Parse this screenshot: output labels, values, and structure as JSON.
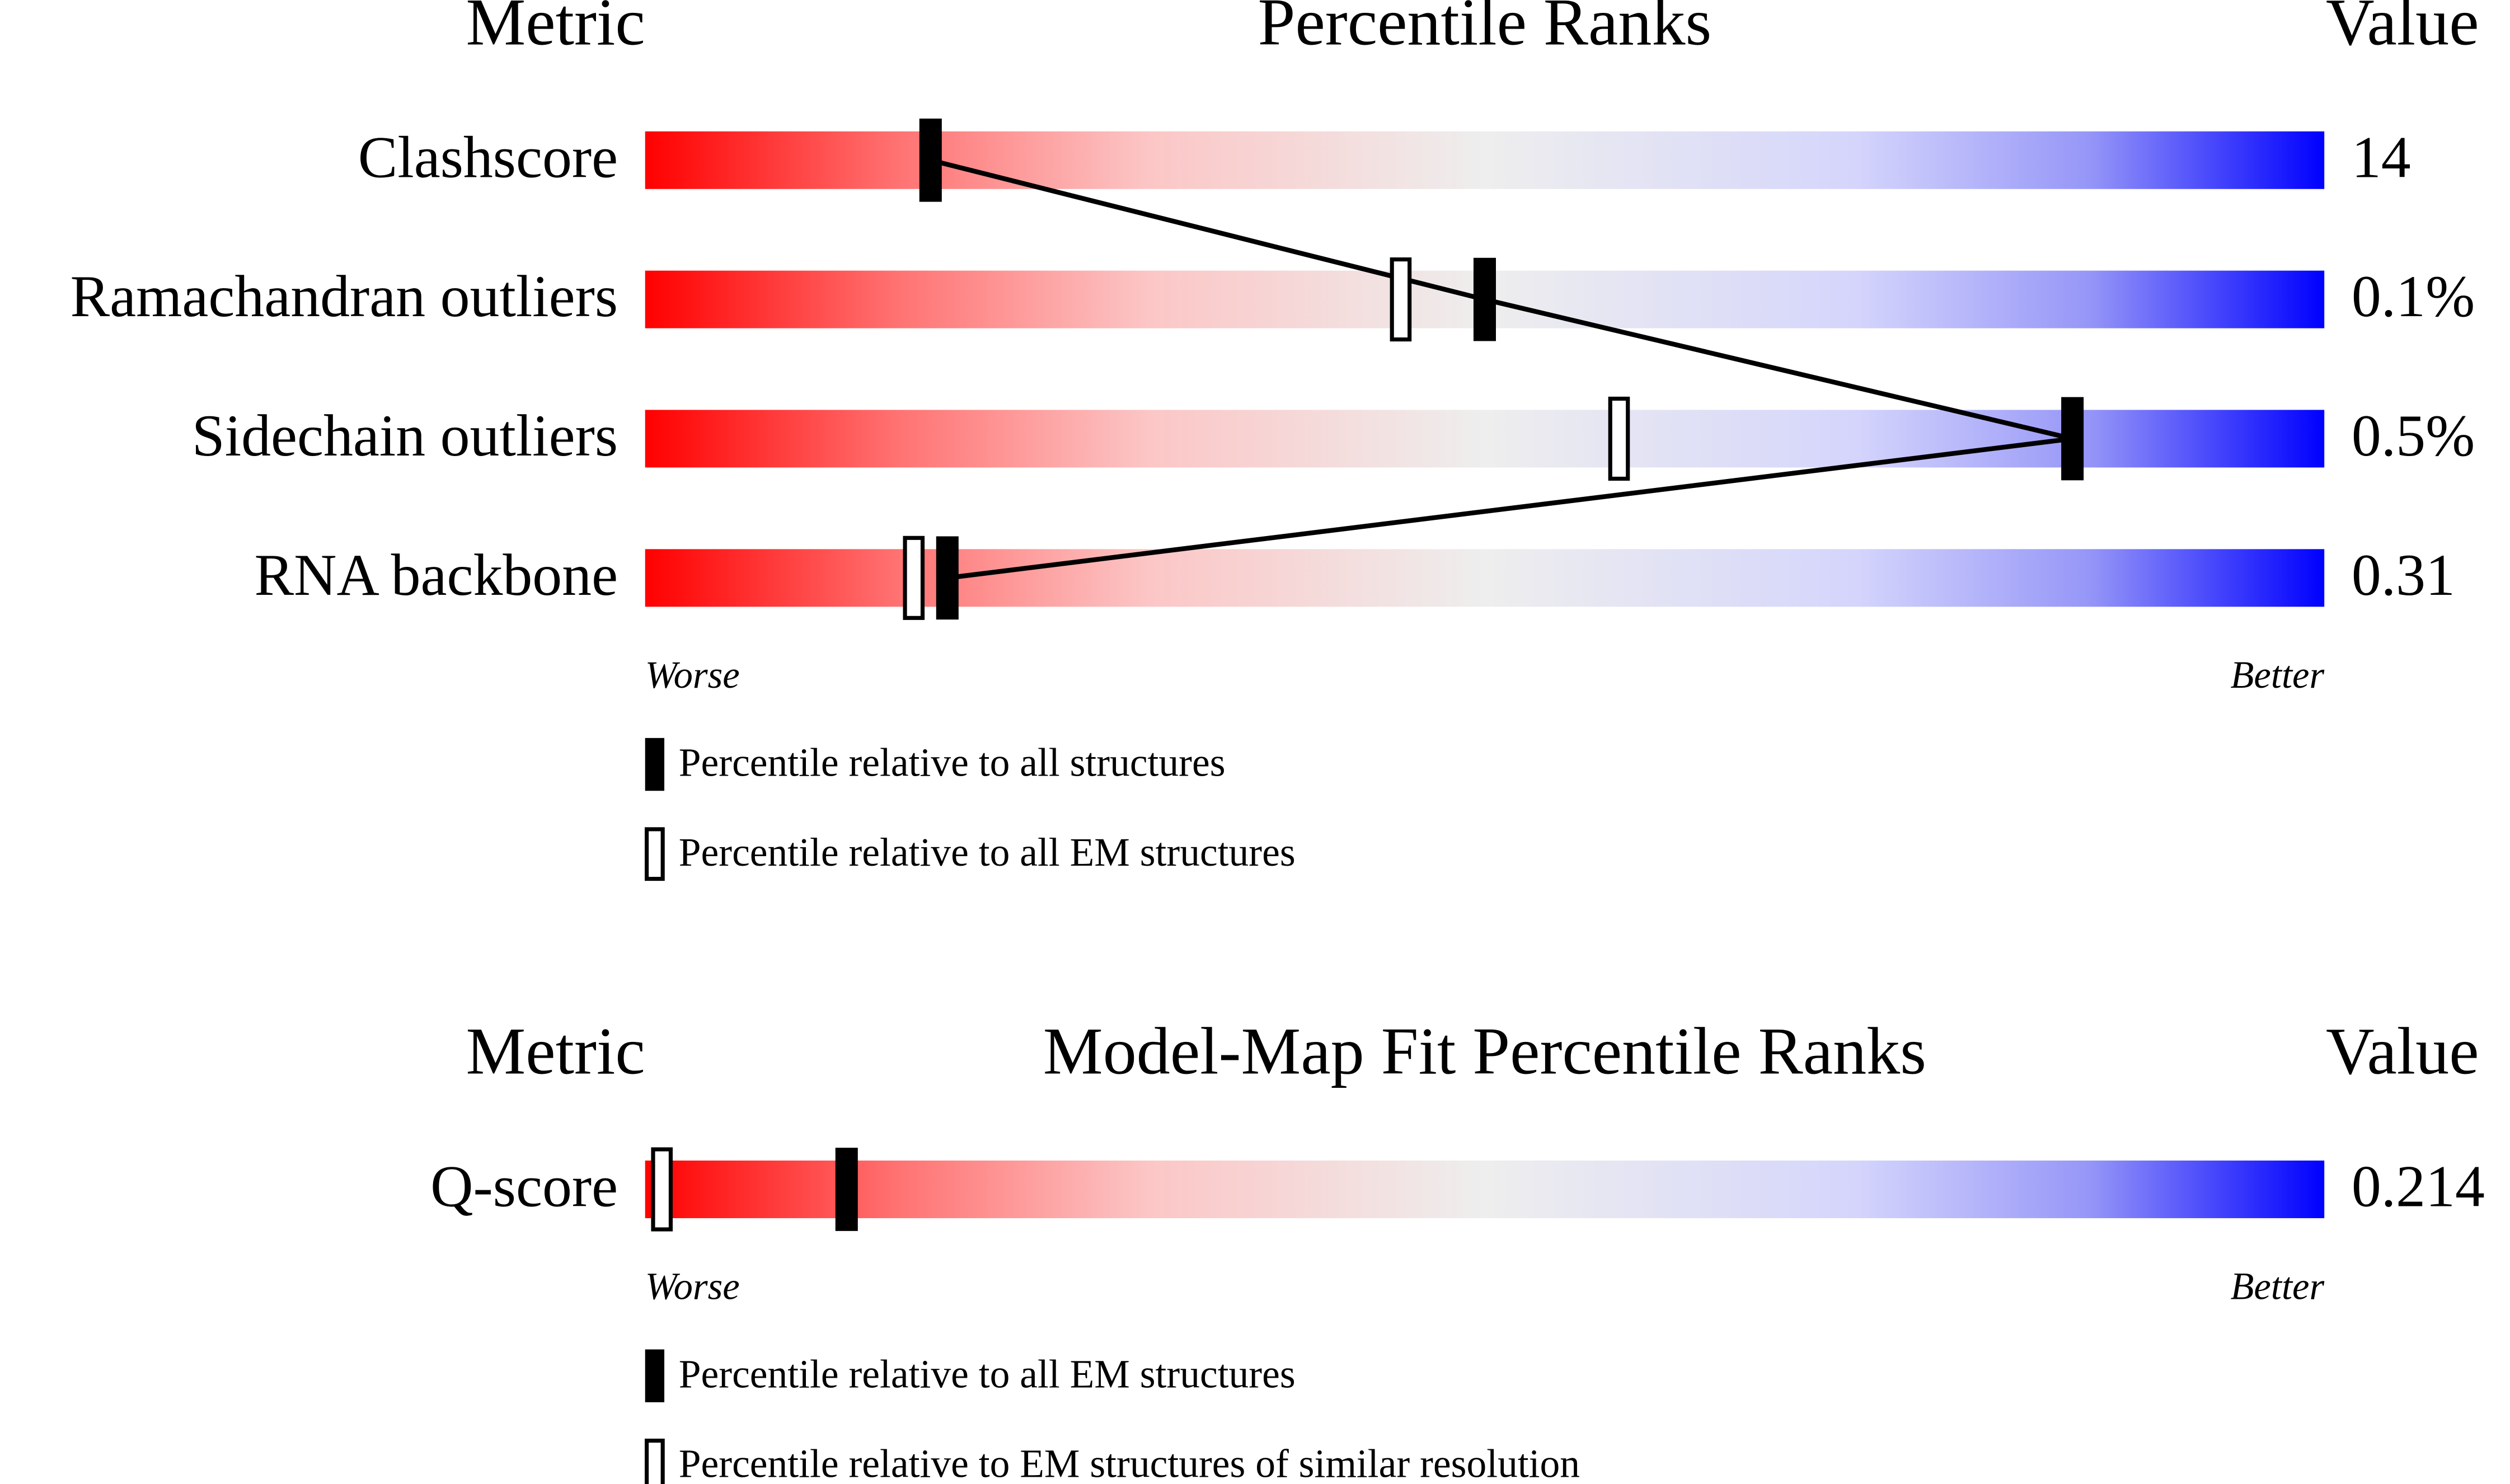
{
  "chart_data": [
    {
      "type": "percentile",
      "metric_header": "Metric",
      "title": "Percentile Ranks",
      "value_header": "Value",
      "categories": [
        "Clashscore",
        "Ramachandran outliers",
        "Sidechain outliers",
        "RNA backbone"
      ],
      "series": [
        {
          "name": "Percentile relative to all structures",
          "style": "filled",
          "color": "#000000",
          "values": [
            17,
            50,
            85,
            18
          ]
        },
        {
          "name": "Percentile relative to all EM structures",
          "style": "hollow",
          "color": "#000000",
          "values": [
            null,
            45,
            58,
            16
          ]
        }
      ],
      "metric_values": [
        14,
        0.1,
        0.5,
        0.31
      ],
      "metric_value_labels": [
        "14",
        "0.1%",
        "0.5%",
        "0.31"
      ],
      "xlim": [
        0,
        100
      ],
      "worse_label": "Worse",
      "better_label": "Better",
      "connect_filled": true
    },
    {
      "type": "percentile",
      "metric_header": "Metric",
      "title": "Model-Map Fit Percentile Ranks",
      "value_header": "Value",
      "categories": [
        "Q-score"
      ],
      "series": [
        {
          "name": "Percentile relative to all EM structures",
          "style": "filled",
          "color": "#000000",
          "values": [
            12
          ]
        },
        {
          "name": "Percentile relative to EM structures of similar resolution",
          "style": "hollow",
          "color": "#000000",
          "values": [
            1
          ]
        }
      ],
      "metric_values": [
        0.214
      ],
      "metric_value_labels": [
        "0.214"
      ],
      "xlim": [
        0,
        100
      ],
      "worse_label": "Worse",
      "better_label": "Better",
      "connect_filled": true
    }
  ]
}
